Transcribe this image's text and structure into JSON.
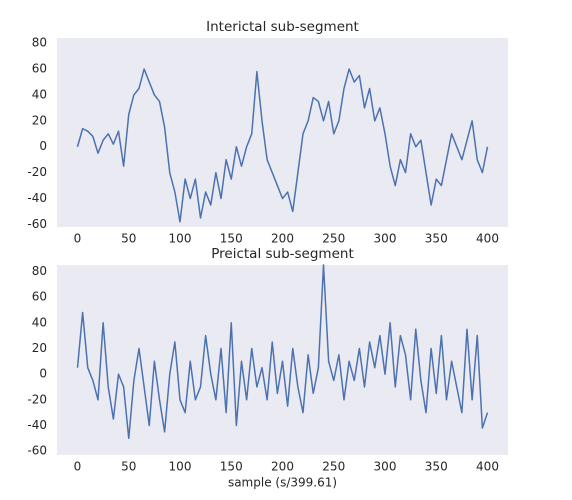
{
  "chart_data": [
    {
      "type": "line",
      "title": "Interictal sub-segment",
      "color": "#4c72b0",
      "grid": false,
      "x": [
        0,
        5,
        10,
        15,
        20,
        25,
        30,
        35,
        40,
        45,
        50,
        55,
        60,
        65,
        70,
        75,
        80,
        85,
        90,
        95,
        100,
        105,
        110,
        115,
        120,
        125,
        130,
        135,
        140,
        145,
        150,
        155,
        160,
        165,
        170,
        175,
        180,
        185,
        190,
        195,
        200,
        205,
        210,
        215,
        220,
        225,
        230,
        235,
        240,
        245,
        250,
        255,
        260,
        265,
        270,
        275,
        280,
        285,
        290,
        295,
        300,
        305,
        310,
        315,
        320,
        325,
        330,
        335,
        340,
        345,
        350,
        355,
        360,
        365,
        370,
        375,
        380,
        385,
        390,
        395,
        400
      ],
      "series": [
        {
          "values": [
            0,
            14,
            12,
            8,
            -5,
            5,
            10,
            2,
            12,
            -15,
            25,
            40,
            45,
            60,
            50,
            40,
            35,
            15,
            -20,
            -35,
            -58,
            -25,
            -40,
            -25,
            -55,
            -35,
            -45,
            -20,
            -40,
            -10,
            -25,
            0,
            -15,
            0,
            10,
            58,
            20,
            -10,
            -20,
            -30,
            -40,
            -35,
            -50,
            -20,
            10,
            20,
            38,
            35,
            20,
            35,
            10,
            20,
            45,
            60,
            50,
            55,
            30,
            45,
            20,
            30,
            10,
            -15,
            -30,
            -10,
            -20,
            10,
            0,
            5,
            -20,
            -45,
            -25,
            -30,
            -10,
            10,
            0,
            -10,
            5,
            20,
            -10,
            -20,
            0
          ]
        }
      ],
      "xlim": [
        -20,
        420
      ],
      "xticks": [
        0,
        50,
        100,
        150,
        200,
        250,
        300,
        350,
        400
      ],
      "ylim": [
        -62,
        84
      ],
      "yticks": [
        -60,
        -40,
        -20,
        0,
        20,
        40,
        60,
        80
      ]
    },
    {
      "type": "line",
      "title": "Preictal sub-segment",
      "x_label": "sample (s/399.61)",
      "color": "#4c72b0",
      "grid": false,
      "x": [
        0,
        5,
        10,
        15,
        20,
        25,
        30,
        35,
        40,
        45,
        50,
        55,
        60,
        65,
        70,
        75,
        80,
        85,
        90,
        95,
        100,
        105,
        110,
        115,
        120,
        125,
        130,
        135,
        140,
        145,
        150,
        155,
        160,
        165,
        170,
        175,
        180,
        185,
        190,
        195,
        200,
        205,
        210,
        215,
        220,
        225,
        230,
        235,
        240,
        245,
        250,
        255,
        260,
        265,
        270,
        275,
        280,
        285,
        290,
        295,
        300,
        305,
        310,
        315,
        320,
        325,
        330,
        335,
        340,
        345,
        350,
        355,
        360,
        365,
        370,
        375,
        380,
        385,
        390,
        395,
        400
      ],
      "series": [
        {
          "values": [
            5,
            48,
            5,
            -5,
            -20,
            40,
            -10,
            -35,
            0,
            -10,
            -50,
            -5,
            20,
            -10,
            -40,
            10,
            -20,
            -45,
            0,
            25,
            -20,
            -30,
            10,
            -20,
            -10,
            30,
            0,
            -20,
            20,
            -30,
            40,
            -40,
            10,
            -20,
            20,
            -10,
            5,
            -20,
            25,
            -15,
            10,
            -25,
            20,
            -10,
            -30,
            15,
            -15,
            5,
            85,
            10,
            -5,
            15,
            -20,
            10,
            -5,
            20,
            -10,
            25,
            5,
            30,
            0,
            40,
            -10,
            30,
            15,
            -20,
            35,
            -5,
            -30,
            20,
            -15,
            30,
            -20,
            10,
            -10,
            -30,
            35,
            -20,
            30,
            -42,
            -30
          ]
        }
      ],
      "xlim": [
        -20,
        420
      ],
      "xticks": [
        0,
        50,
        100,
        150,
        200,
        250,
        300,
        350,
        400
      ],
      "ylim": [
        -63,
        85
      ],
      "yticks": [
        -60,
        -40,
        -20,
        0,
        20,
        40,
        60,
        80
      ]
    }
  ]
}
